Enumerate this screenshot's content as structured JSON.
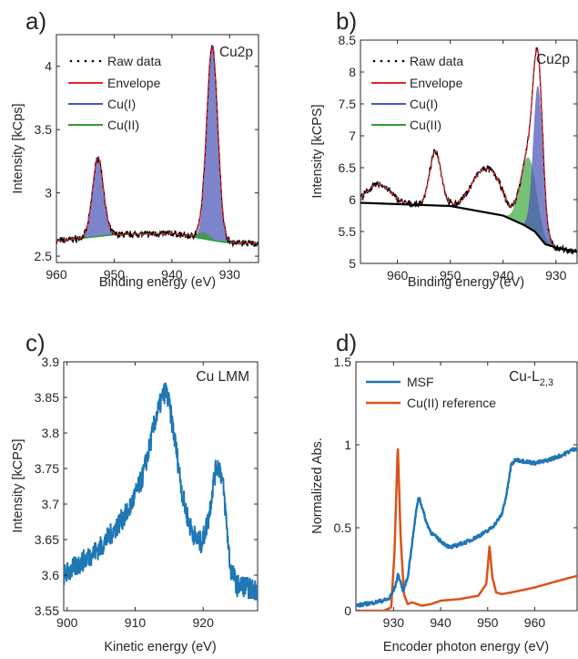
{
  "chart_data": [
    {
      "panel": "a)",
      "type": "line",
      "title": "Cu2p",
      "xlabel": "Binding energy (eV)",
      "ylabel": "Intensity [kCps]",
      "xlim": [
        960,
        925
      ],
      "xreversed": true,
      "ylim": [
        2.45,
        4.25
      ],
      "xticks": [
        960,
        950,
        940,
        930
      ],
      "yticks": [
        2.5,
        3,
        3.5,
        4
      ],
      "ytick_labels": [
        "2.5",
        "3",
        "3.5",
        "4"
      ],
      "legend_position": "top-left",
      "background": {
        "x": [
          960,
          950,
          940,
          936,
          933,
          931,
          925
        ],
        "y": [
          2.62,
          2.67,
          2.68,
          2.65,
          2.625,
          2.61,
          2.6
        ]
      },
      "peaks": [
        {
          "component": "Cu(I)",
          "center": 933,
          "height": 1.52,
          "width": 0.95
        },
        {
          "component": "Cu(I)",
          "center": 952.8,
          "height": 0.62,
          "width": 0.95
        },
        {
          "component": "Cu(II)",
          "center": 934.5,
          "height": 0.05,
          "width": 1.0
        }
      ],
      "series": [
        {
          "name": "Raw data",
          "style": "dots",
          "color": "#000000"
        },
        {
          "name": "Envelope",
          "style": "line",
          "color": "#e8242a"
        },
        {
          "name": "Cu(I)",
          "style": "fill",
          "color": "#4a55b8"
        },
        {
          "name": "Cu(II)",
          "style": "fill",
          "color": "#2ca02c"
        }
      ]
    },
    {
      "panel": "b)",
      "type": "line",
      "title": "Cu2p",
      "xlabel": "Binding energy (eV)",
      "ylabel": "Intensity [kCPS]",
      "xlim": [
        967,
        926
      ],
      "xreversed": true,
      "ylim": [
        5,
        8.5
      ],
      "xticks": [
        960,
        950,
        940,
        930
      ],
      "yticks": [
        5,
        5.5,
        6,
        6.5,
        7,
        7.5,
        8,
        8.5
      ],
      "ytick_labels": [
        "5",
        "5.5",
        "6",
        "6.5",
        "7",
        "7.5",
        "8",
        "8.5"
      ],
      "legend_position": "top-left",
      "background": {
        "x": [
          967,
          950,
          940,
          936,
          934,
          932,
          930,
          926
        ],
        "y": [
          5.95,
          5.9,
          5.75,
          5.6,
          5.5,
          5.3,
          5.25,
          5.18
        ]
      },
      "peaks": [
        {
          "component": "Cu(I)",
          "center": 933.4,
          "height": 2.35,
          "width": 0.9
        },
        {
          "component": "Cu(II)",
          "center": 935.2,
          "height": 1.1,
          "width": 1.5
        },
        {
          "component": "sat",
          "center": 963.5,
          "height": 0.3,
          "width": 2.2
        },
        {
          "component": "sat",
          "center": 952.8,
          "height": 0.85,
          "width": 1.1
        },
        {
          "component": "sat",
          "center": 943.8,
          "height": 0.62,
          "width": 2.3
        },
        {
          "component": "sat",
          "center": 941.0,
          "height": 0.25,
          "width": 1.5
        }
      ],
      "series": [
        {
          "name": "Raw data",
          "style": "dots",
          "color": "#000000"
        },
        {
          "name": "Envelope",
          "style": "line",
          "color": "#e8242a"
        },
        {
          "name": "Cu(I)",
          "style": "fill",
          "color": "#4a55b8"
        },
        {
          "name": "Cu(II)",
          "style": "fill",
          "color": "#2ca02c"
        }
      ]
    },
    {
      "panel": "c)",
      "type": "line",
      "title": "Cu LMM",
      "xlabel": "Kinetic energy (eV)",
      "ylabel": "Intensity [kCPS]",
      "xlim": [
        899.5,
        928
      ],
      "ylim": [
        3.55,
        3.9
      ],
      "xticks": [
        900,
        910,
        920
      ],
      "yticks": [
        3.55,
        3.6,
        3.65,
        3.7,
        3.75,
        3.8,
        3.85,
        3.9
      ],
      "ytick_labels": [
        "3.55",
        "3.6",
        "3.65",
        "3.7",
        "3.75",
        "3.8",
        "3.85",
        "3.9"
      ],
      "series": [
        {
          "name": "",
          "color": "#1f77b4",
          "x": [
            899.5,
            901,
            903,
            905,
            907,
            909,
            911,
            912,
            913,
            914,
            914.5,
            915,
            916,
            917,
            918,
            919,
            919.8,
            920.8,
            921.5,
            922,
            922.5,
            923,
            923.5,
            924,
            925,
            926,
            927,
            928
          ],
          "y": [
            3.6,
            3.61,
            3.625,
            3.64,
            3.665,
            3.69,
            3.735,
            3.775,
            3.82,
            3.85,
            3.86,
            3.84,
            3.78,
            3.71,
            3.67,
            3.65,
            3.645,
            3.68,
            3.73,
            3.755,
            3.75,
            3.72,
            3.665,
            3.61,
            3.585,
            3.585,
            3.58,
            3.58
          ]
        }
      ]
    },
    {
      "panel": "d)",
      "type": "line",
      "title": "Cu-L",
      "title_sub": "2,3",
      "xlabel": "Encoder photon energy (eV)",
      "ylabel": "Normalized Abs.",
      "xlim": [
        922,
        969
      ],
      "ylim": [
        0,
        1.5
      ],
      "xticks": [
        930,
        940,
        950,
        960
      ],
      "yticks": [
        0,
        0.5,
        1,
        1.5
      ],
      "ytick_labels": [
        "0",
        "0.5",
        "1",
        "1.5"
      ],
      "legend_position": "top-left",
      "series": [
        {
          "name": "MSF",
          "color": "#1f77b4",
          "x": [
            922,
            926,
            929,
            930.3,
            931,
            932,
            933,
            934,
            935,
            935.4,
            936,
            937,
            938,
            940,
            942,
            944,
            946,
            948,
            950,
            951.5,
            953,
            954,
            955,
            956,
            958,
            960,
            962,
            964,
            966,
            968,
            969
          ],
          "y": [
            0.03,
            0.05,
            0.07,
            0.14,
            0.22,
            0.12,
            0.2,
            0.42,
            0.64,
            0.69,
            0.63,
            0.53,
            0.47,
            0.42,
            0.38,
            0.4,
            0.42,
            0.45,
            0.48,
            0.52,
            0.58,
            0.7,
            0.88,
            0.91,
            0.9,
            0.89,
            0.9,
            0.92,
            0.94,
            0.97,
            0.98
          ]
        },
        {
          "name": "Cu(II) reference",
          "color": "#d95319",
          "x": [
            922,
            928,
            929.5,
            930.2,
            930.9,
            931.5,
            932.2,
            933,
            934,
            935,
            936,
            938,
            940,
            944,
            948,
            949.7,
            950.4,
            951,
            951.8,
            953,
            955,
            960,
            965,
            969
          ],
          "y": [
            0.0,
            0.0,
            0.02,
            0.35,
            1.0,
            0.45,
            0.1,
            0.04,
            0.05,
            0.04,
            0.03,
            0.04,
            0.06,
            0.07,
            0.09,
            0.16,
            0.39,
            0.2,
            0.11,
            0.1,
            0.11,
            0.14,
            0.18,
            0.21
          ]
        }
      ]
    }
  ]
}
